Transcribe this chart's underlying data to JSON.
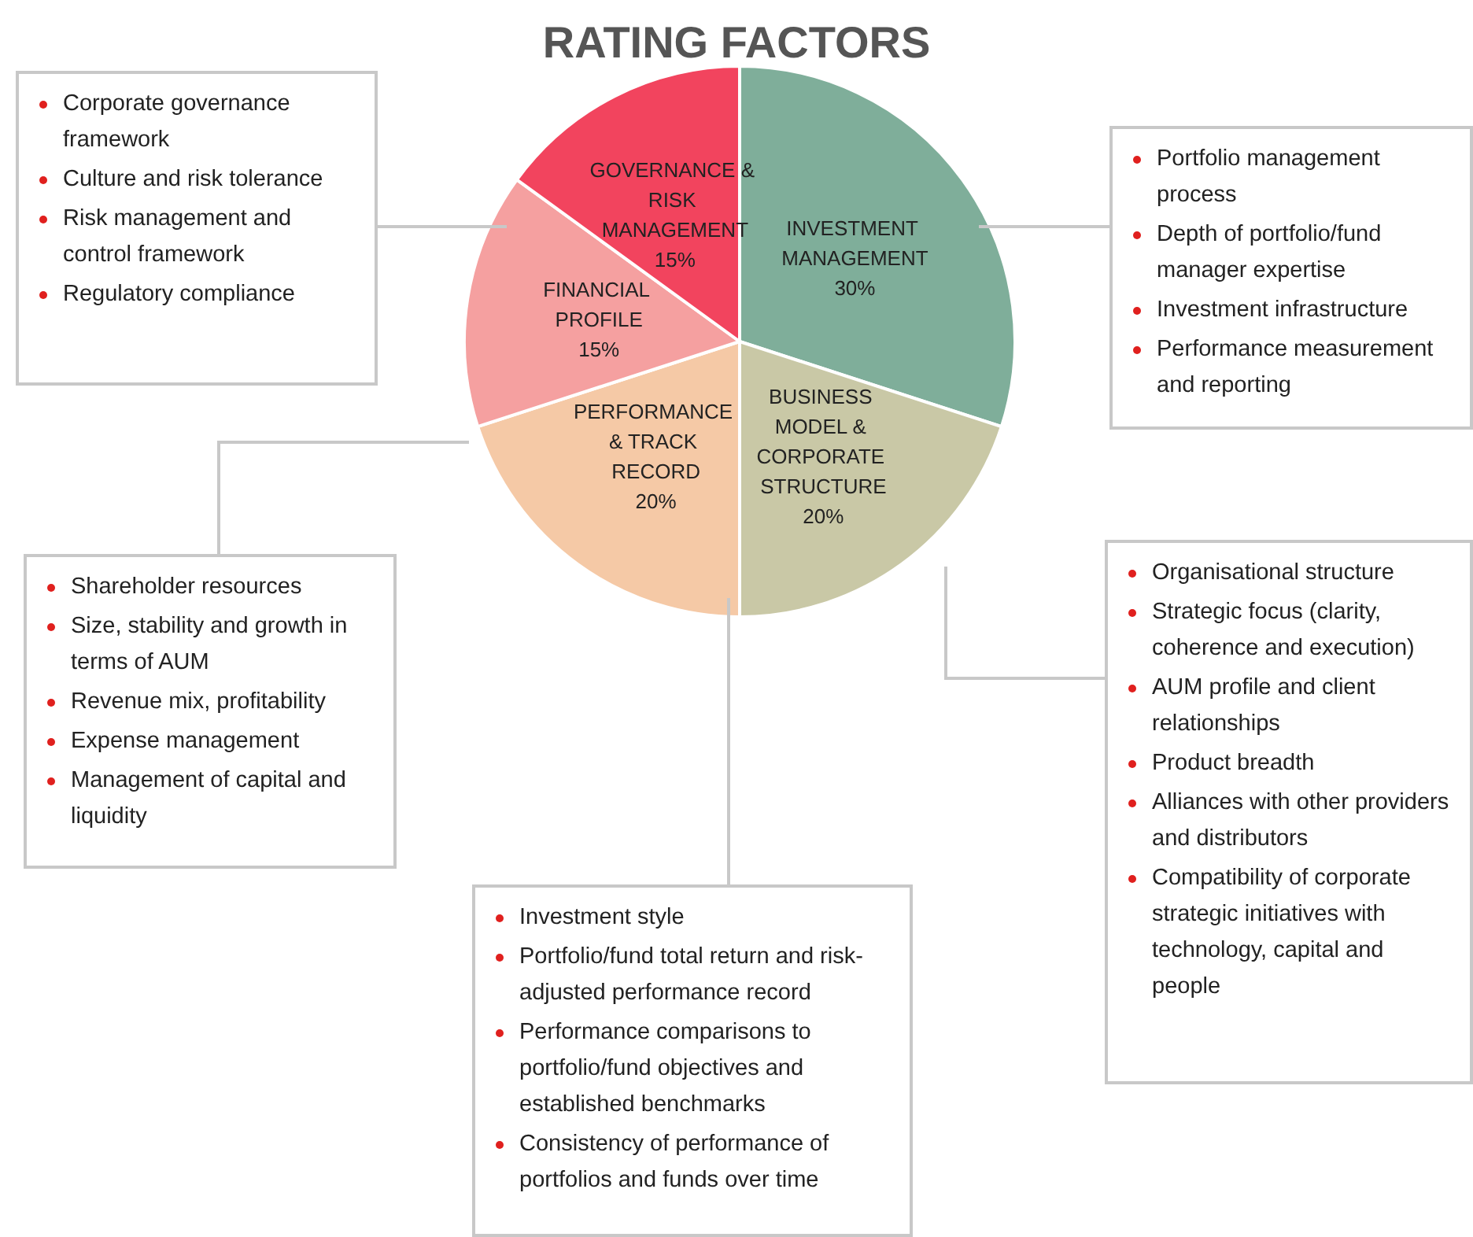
{
  "chart_data": {
    "type": "pie",
    "title": "RATING FACTORS",
    "categories": [
      "INVESTMENT MANAGEMENT",
      "BUSINESS MODEL & CORPORATE STRUCTURE",
      "PERFORMANCE & TRACK RECORD",
      "FINANCIAL PROFILE",
      "GOVERNANCE & RISK MANAGEMENT"
    ],
    "values": [
      30,
      20,
      20,
      15,
      15
    ],
    "value_labels": [
      "30%",
      "20%",
      "20%",
      "15%",
      "15%"
    ],
    "colors": [
      "#7fae9a",
      "#c9c8a6",
      "#f5c9a6",
      "#f5a0a0",
      "#f2445e"
    ],
    "annotations": [
      "Corporate governance framework\nCulture and risk tolerance\nRisk management and control framework\nRegulatory compliance",
      "Portfolio management process\nDepth of portfolio/fund manager expertise\nInvestment infrastructure\nPerformance measurement and reporting",
      "Shareholder resources\nSize, stability and growth in terms of AUM\nRevenue mix, profitability\nExpense management\nManagement of capital and liquidity",
      "Organisational structure\nStrategic focus (clarity, coherence and execution)\nAUM profile and client relationships\nProduct breadth\nAlliances with other providers and distributors\nCompatibility of corporate strategic initiatives with technology, capital and people",
      "Investment style\nPortfolio/fund total return and risk-adjusted performance record\nPerformance comparisons to portfolio/fund objectives and established benchmarks\nConsistency of performance of portfolios and funds over time"
    ]
  }
}
